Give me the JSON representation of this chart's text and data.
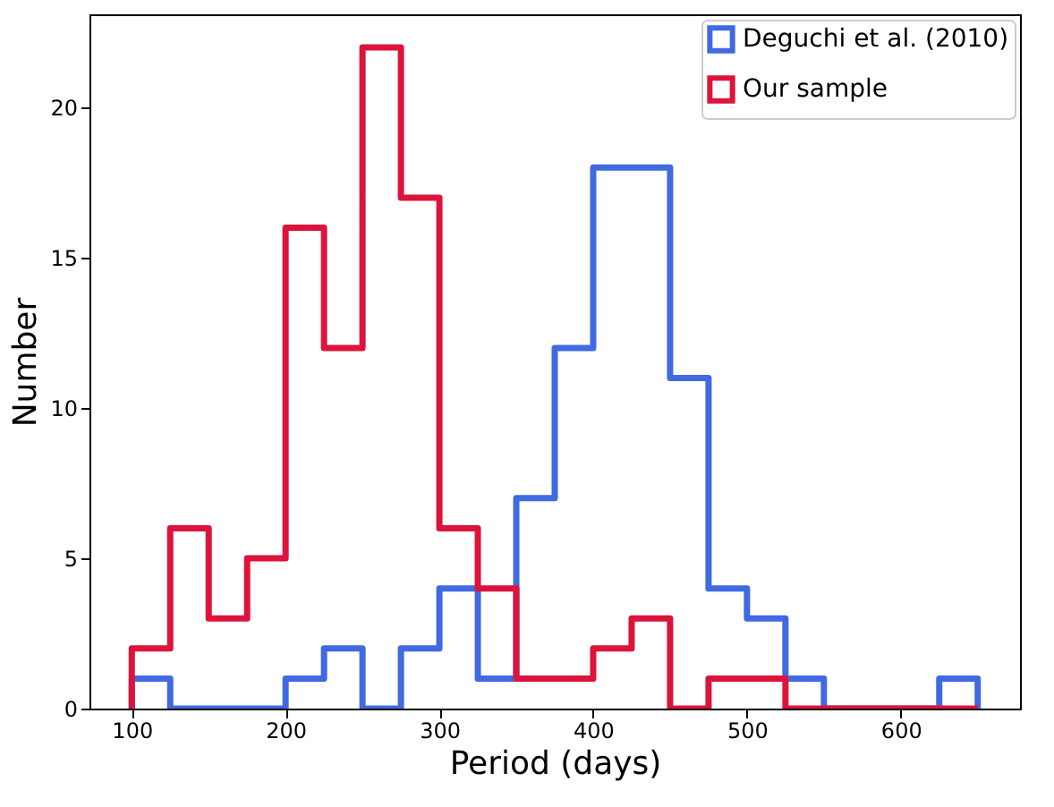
{
  "chart_data": {
    "type": "histogram",
    "xlabel": "Period (days)",
    "ylabel": "Number",
    "bins": [
      100,
      125,
      150,
      175,
      200,
      225,
      250,
      275,
      300,
      325,
      350,
      375,
      400,
      425,
      450,
      475,
      500,
      525,
      550,
      575,
      600,
      625,
      650
    ],
    "series": [
      {
        "name": "Deguchi et al. (2010)",
        "color": "#4169e1",
        "values": [
          1,
          0,
          0,
          0,
          1,
          2,
          0,
          2,
          4,
          1,
          7,
          12,
          18,
          18,
          11,
          4,
          3,
          1,
          0,
          0,
          0,
          1
        ]
      },
      {
        "name": "Our sample",
        "color": "#dc143c",
        "values": [
          2,
          6,
          3,
          5,
          16,
          12,
          22,
          17,
          6,
          4,
          1,
          1,
          2,
          3,
          0,
          1,
          1,
          0,
          0,
          0,
          0,
          0
        ]
      }
    ],
    "xlim": [
      72.5,
      677.5
    ],
    "xticks": [
      100,
      200,
      300,
      400,
      500,
      600
    ],
    "ylim": [
      0,
      23.1
    ],
    "yticks": [
      0,
      5,
      10,
      15,
      20
    ],
    "grid": false,
    "legend": "top right"
  }
}
